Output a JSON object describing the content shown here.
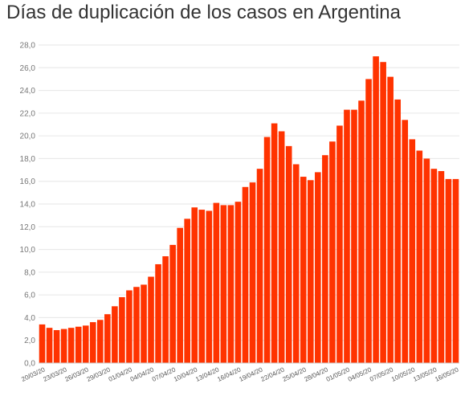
{
  "chart_data": {
    "type": "bar",
    "title": "Días de duplicación de los casos en Argentina",
    "xlabel": "",
    "ylabel": "",
    "ylim": [
      0,
      28
    ],
    "y_ticks": [
      "0,0",
      "2,0",
      "4,0",
      "6,0",
      "8,0",
      "10,0",
      "12,0",
      "14,0",
      "16,0",
      "18,0",
      "20,0",
      "22,0",
      "24,0",
      "26,0",
      "28,0"
    ],
    "grid": true,
    "bar_color": "#ff3300",
    "categories": [
      "20/03/20",
      "21/03/20",
      "22/03/20",
      "23/03/20",
      "24/03/20",
      "25/03/20",
      "26/03/20",
      "27/03/20",
      "28/03/20",
      "29/03/20",
      "30/03/20",
      "31/03/20",
      "01/04/20",
      "02/04/20",
      "03/04/20",
      "04/04/20",
      "05/04/20",
      "06/04/20",
      "07/04/20",
      "08/04/20",
      "09/04/20",
      "10/04/20",
      "11/04/20",
      "12/04/20",
      "13/04/20",
      "14/04/20",
      "15/04/20",
      "16/04/20",
      "17/04/20",
      "18/04/20",
      "19/04/20",
      "20/04/20",
      "21/04/20",
      "22/04/20",
      "23/04/20",
      "24/04/20",
      "25/04/20",
      "26/04/20",
      "27/04/20",
      "28/04/20",
      "29/04/20",
      "30/04/20",
      "01/05/20",
      "02/05/20",
      "03/05/20",
      "04/05/20",
      "05/05/20",
      "06/05/20",
      "07/05/20",
      "08/05/20",
      "09/05/20",
      "10/05/20",
      "11/05/20",
      "12/05/20",
      "13/05/20",
      "14/05/20",
      "15/05/20",
      "16/05/20"
    ],
    "x_tick_labels": [
      "20/03/20",
      "23/03/20",
      "26/03/20",
      "29/03/20",
      "01/04/20",
      "04/04/20",
      "07/04/20",
      "10/04/20",
      "13/04/20",
      "16/04/20",
      "19/04/20",
      "22/04/20",
      "25/04/20",
      "28/04/20",
      "01/05/20",
      "04/05/20",
      "07/05/20",
      "10/05/20",
      "13/05/20",
      "16/05/20"
    ],
    "values": [
      3.4,
      3.1,
      2.9,
      3.0,
      3.1,
      3.2,
      3.3,
      3.6,
      3.8,
      4.3,
      5.0,
      5.8,
      6.4,
      6.7,
      6.9,
      7.6,
      8.7,
      9.4,
      10.4,
      11.9,
      12.7,
      13.7,
      13.5,
      13.4,
      14.1,
      13.9,
      13.9,
      14.2,
      15.5,
      15.9,
      17.1,
      19.9,
      21.1,
      20.4,
      19.1,
      17.5,
      16.4,
      16.1,
      16.8,
      18.3,
      19.5,
      20.9,
      22.3,
      22.3,
      23.1,
      25.0,
      27.0,
      26.5,
      25.2,
      23.2,
      21.4,
      19.7,
      18.7,
      18.0,
      17.1,
      16.9,
      16.2,
      16.2
    ]
  }
}
